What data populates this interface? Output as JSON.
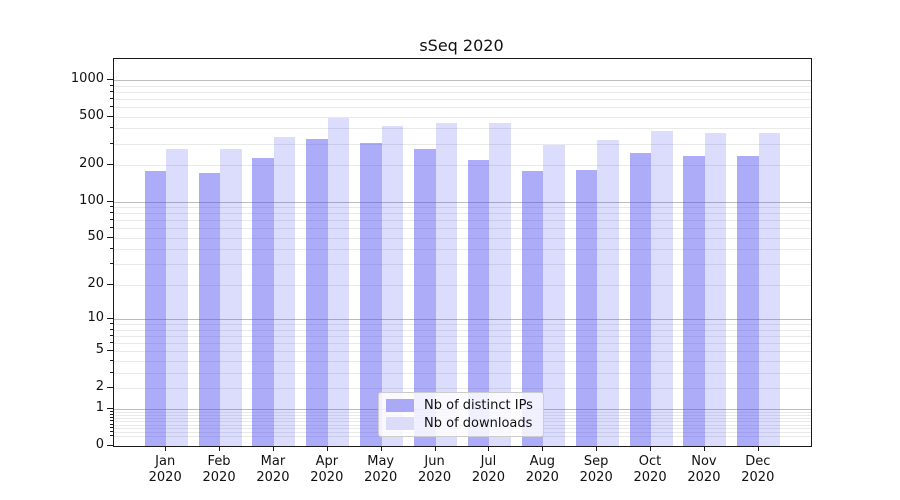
{
  "figure": {
    "title": "sSeq 2020"
  },
  "legend": {
    "items": [
      {
        "label": "Nb of distinct IPs",
        "color": "#a9a9f6"
      },
      {
        "label": "Nb of downloads",
        "color": "#dcdcf9"
      }
    ]
  },
  "chart_data": {
    "type": "bar",
    "title": "sSeq 2020",
    "categories": [
      "Jan",
      "Feb",
      "Mar",
      "Apr",
      "May",
      "Jun",
      "Jul",
      "Aug",
      "Sep",
      "Oct",
      "Nov",
      "Dec"
    ],
    "x_tick_year": "2020",
    "series": [
      {
        "name": "Nb of distinct IPs",
        "color": "rgba(70,70,240,0.45)",
        "legend_color": "#a9a9f6",
        "values": [
          180,
          172,
          228,
          325,
          305,
          270,
          222,
          178,
          181,
          250,
          238,
          236
        ]
      },
      {
        "name": "Nb of downloads",
        "color": "rgba(70,70,240,0.19)",
        "legend_color": "#dcdcf9",
        "values": [
          270,
          270,
          340,
          490,
          420,
          440,
          440,
          295,
          320,
          380,
          368,
          370
        ]
      }
    ],
    "yscale": "log1p",
    "y_ticks": [
      0,
      1,
      2,
      5,
      10,
      20,
      50,
      100,
      200,
      500,
      1000
    ],
    "ylim": [
      0,
      1487
    ],
    "xlabel": "",
    "ylabel": "",
    "grid": "horizontal major (1,10,100,1000) + minor log decades",
    "legend_position": "lower center"
  }
}
